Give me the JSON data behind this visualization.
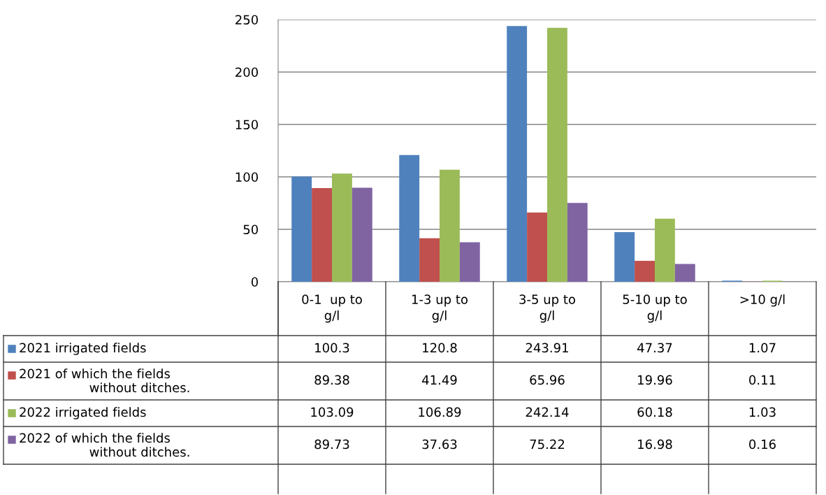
{
  "chart_data": {
    "type": "bar",
    "categories": [
      "0-1  up to g/l",
      "1-3 up to g/l",
      "3-5 up to g/l",
      "5-10 up to g/l",
      ">10 g/l"
    ],
    "series": [
      {
        "name": "2021 irrigated fields",
        "color": "#4f81bd",
        "values": [
          100.3,
          120.8,
          243.91,
          47.37,
          1.07
        ]
      },
      {
        "name": "2021 of which the fields without ditches.",
        "color": "#c0504d",
        "values": [
          89.38,
          41.49,
          65.96,
          19.96,
          0.11
        ]
      },
      {
        "name": "2022 irrigated fields",
        "color": "#9bbb59",
        "values": [
          103.09,
          106.89,
          242.14,
          60.18,
          1.03
        ]
      },
      {
        "name": "2022 of which the fields without ditches.",
        "color": "#8064a2",
        "values": [
          89.73,
          37.63,
          75.22,
          16.98,
          0.16
        ]
      }
    ],
    "ylim": [
      0,
      250
    ],
    "yticks": [
      0,
      50,
      100,
      150,
      200,
      250
    ],
    "grid": "y",
    "legend": "bottom",
    "data_labels": true
  }
}
